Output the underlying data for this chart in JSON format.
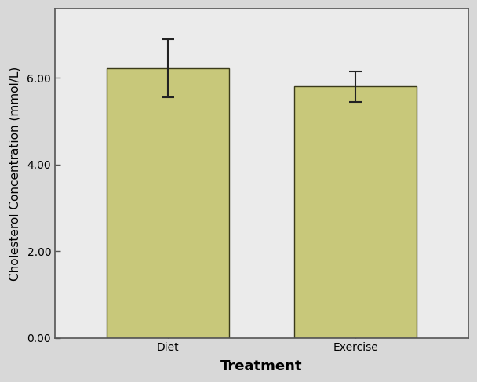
{
  "categories": [
    "Diet",
    "Exercise"
  ],
  "values": [
    6.22,
    5.8
  ],
  "error_lower": [
    0.67,
    0.35
  ],
  "error_upper": [
    0.68,
    0.35
  ],
  "bar_color": "#c8c87a",
  "bar_edgecolor": "#3a3a1a",
  "figure_background": "#d8d8d8",
  "plot_background": "#ebebeb",
  "xlabel": "Treatment",
  "ylabel": "Cholesterol Concentration (mmol/L)",
  "ylim": [
    0,
    7.6
  ],
  "yticks": [
    0.0,
    2.0,
    4.0,
    6.0
  ],
  "ytick_labels": [
    "0.00",
    "2.00",
    "4.00",
    "6.00"
  ],
  "xlabel_fontsize": 13,
  "ylabel_fontsize": 11,
  "tick_fontsize": 10,
  "bar_width": 0.65,
  "capsize": 6,
  "errorbar_linewidth": 1.5,
  "errorbar_color": "#222222",
  "spine_color": "#555555",
  "xlim": [
    -0.6,
    1.6
  ]
}
